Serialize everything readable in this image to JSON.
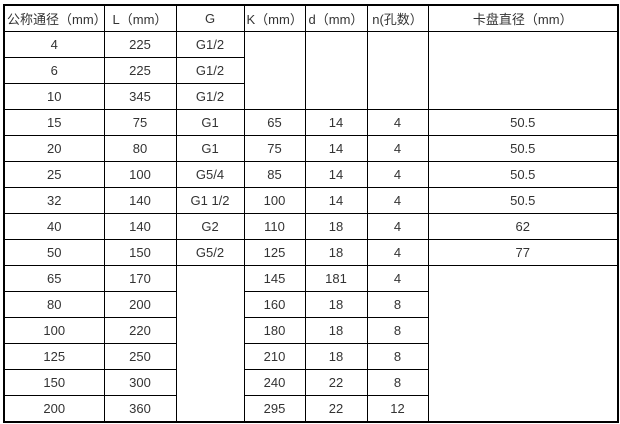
{
  "page": {
    "background_color": "#ffffff",
    "border_color": "#000000",
    "text_color": "#333333"
  },
  "table": {
    "headers": [
      "公称通径（mm）",
      "L（mm）",
      "G",
      "K（mm）",
      "d（mm）",
      "n(孔数）",
      "卡盘直径（mm）"
    ],
    "rows": [
      [
        "4",
        "225",
        "G1/2"
      ],
      [
        "6",
        "225",
        "G1/2"
      ],
      [
        "10",
        "345",
        "G1/2"
      ],
      [
        "15",
        "75",
        "G1",
        "65",
        "14",
        "4",
        "50.5"
      ],
      [
        "20",
        "80",
        "G1",
        "75",
        "14",
        "4",
        "50.5"
      ],
      [
        "25",
        "100",
        "G5/4",
        "85",
        "14",
        "4",
        "50.5"
      ],
      [
        "32",
        "140",
        "G1 1/2",
        "100",
        "14",
        "4",
        "50.5"
      ],
      [
        "40",
        "140",
        "G2",
        "110",
        "18",
        "4",
        "62"
      ],
      [
        "50",
        "150",
        "G5/2",
        "125",
        "18",
        "4",
        "77"
      ],
      [
        "65",
        "170",
        "145",
        "181",
        "4"
      ],
      [
        "80",
        "200",
        "160",
        "18",
        "8"
      ],
      [
        "100",
        "220",
        "180",
        "18",
        "8"
      ],
      [
        "125",
        "250",
        "210",
        "18",
        "8"
      ],
      [
        "150",
        "300",
        "240",
        "22",
        "8"
      ],
      [
        "200",
        "360",
        "295",
        "22",
        "12"
      ]
    ]
  }
}
